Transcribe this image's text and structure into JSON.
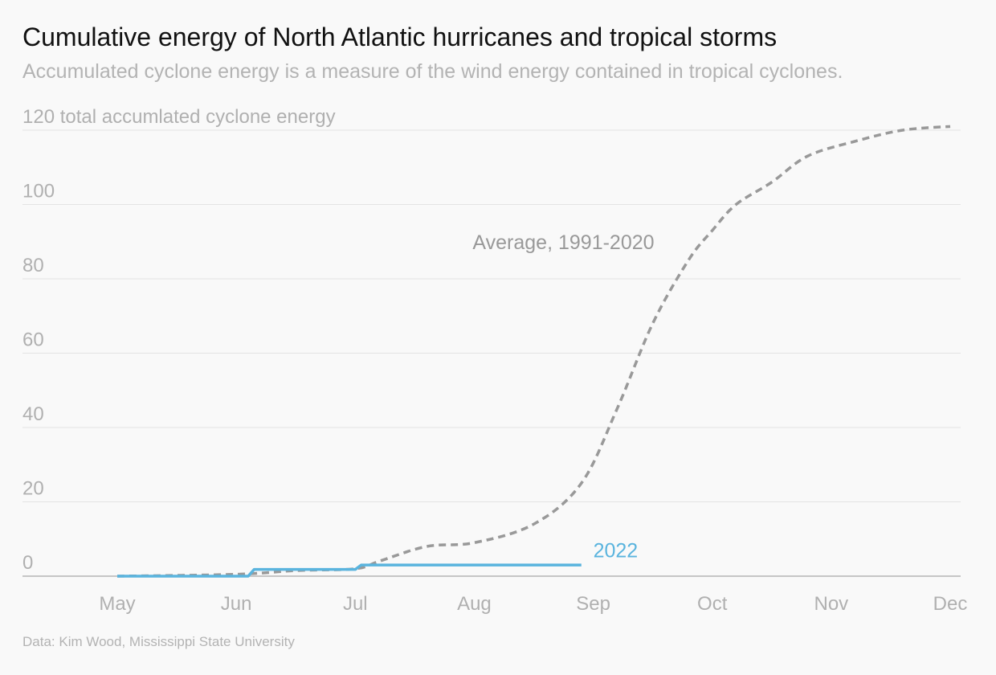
{
  "title": "Cumulative energy of North Atlantic hurricanes and tropical storms",
  "subtitle": "Accumulated cyclone energy is a measure of the wind energy contained in tropical cyclones.",
  "source": "Data: Kim Wood, Mississippi State University",
  "colors": {
    "average": "#999999",
    "y2022": "#5ab4de",
    "grid": "#e4e4e4",
    "axis": "#b5b5b5",
    "tick_text": "#b0b0b0"
  },
  "chart_data": {
    "type": "line",
    "title": "Cumulative energy of North Atlantic hurricanes and tropical storms",
    "subtitle": "Accumulated cyclone energy is a measure of the wind energy contained in tropical cyclones.",
    "ylabel": "total accumlated cyclone energy",
    "ylim": [
      0,
      120
    ],
    "yticks": [
      0,
      20,
      40,
      60,
      80,
      100,
      120
    ],
    "ytick_labels": [
      "0",
      "20",
      "40",
      "60",
      "80",
      "100",
      "120 total accumlated cyclone energy"
    ],
    "xticks": [
      "May",
      "Jun",
      "Jul",
      "Aug",
      "Sep",
      "Oct",
      "Nov",
      "Dec"
    ],
    "x_unit": "month (fractional, 0 = May 1, 7 = Dec 1)",
    "grid": true,
    "series": [
      {
        "name": "Average, 1991-2020",
        "style": "dashed",
        "x": [
          0,
          1.0,
          1.5,
          2.0,
          2.2,
          2.6,
          3.0,
          3.5,
          3.9,
          4.2,
          4.5,
          4.8,
          5.0,
          5.2,
          5.5,
          5.8,
          6.2,
          6.6,
          7.0
        ],
        "y": [
          0,
          0.5,
          1.5,
          2,
          4,
          8,
          9,
          14,
          25,
          45,
          68,
          85,
          93,
          100,
          106,
          113,
          117,
          120,
          121
        ]
      },
      {
        "name": "2022",
        "style": "solid",
        "x": [
          0,
          1.1,
          1.15,
          2.0,
          2.05,
          3.9
        ],
        "y": [
          0,
          0,
          1.8,
          1.8,
          3.0,
          3.0
        ]
      }
    ],
    "annotations": [
      {
        "text": "Average, 1991-2020",
        "series": "Average, 1991-2020",
        "x": 3.0,
        "y": 90
      },
      {
        "text": "2022",
        "series": "2022",
        "x": 4.0,
        "y": 7
      }
    ]
  }
}
